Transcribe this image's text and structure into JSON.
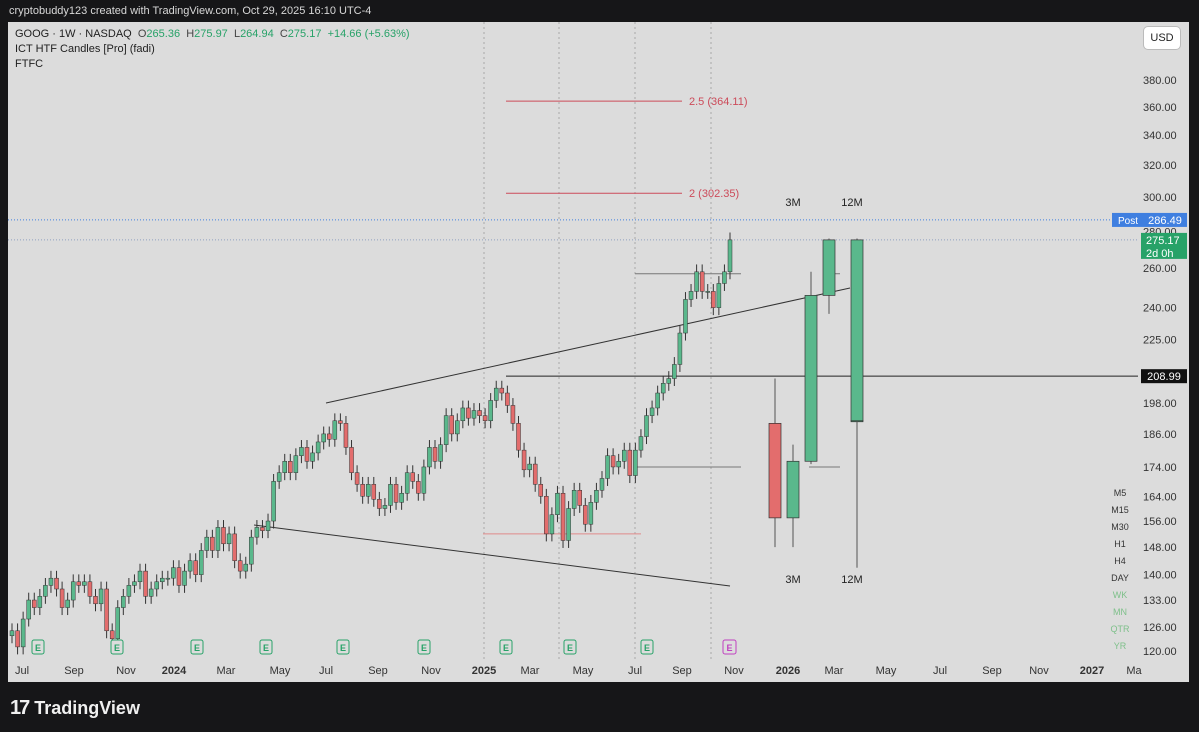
{
  "header": {
    "caption": "cryptobuddy123 created with TradingView.com, Oct 29, 2025 16:10 UTC-4"
  },
  "legend": {
    "symbol": "GOOG · 1W · NASDAQ",
    "o_label": "O",
    "o_value": "265.36",
    "h_label": "H",
    "h_value": "275.97",
    "l_label": "L",
    "l_value": "264.94",
    "c_label": "C",
    "c_value": "275.17",
    "change": "+14.66 (+5.63%)",
    "indicator": "ICT HTF Candles [Pro] (fadi)",
    "indicator2": "FTFC"
  },
  "currency_button": "USD",
  "timeframes": [
    {
      "label": "M5",
      "active": false
    },
    {
      "label": "M15",
      "active": false
    },
    {
      "label": "M30",
      "active": false
    },
    {
      "label": "H1",
      "active": false
    },
    {
      "label": "H4",
      "active": false
    },
    {
      "label": "DAY",
      "active": false
    },
    {
      "label": "WK",
      "active": true
    },
    {
      "label": "MN",
      "active": true
    },
    {
      "label": "QTR",
      "active": true
    },
    {
      "label": "YR",
      "active": true
    }
  ],
  "footer": {
    "brand": "TradingView",
    "logo_mark": "17"
  },
  "colors": {
    "up": "#5ab88c",
    "down": "#e36d6d",
    "level": "#cc4b5a",
    "post": "#3f7fe0",
    "last": "#27a268",
    "background": "#dcdcdc"
  },
  "chart_data": {
    "type": "candlestick",
    "symbol": "GOOG",
    "interval": "1W",
    "exchange": "NASDAQ",
    "y_scale": "log",
    "y_ticks": [
      120,
      126,
      133,
      140,
      148,
      156,
      164,
      174,
      186,
      198,
      225,
      240,
      260,
      280,
      300,
      320,
      340,
      360,
      380
    ],
    "y_tick_labels": [
      "120.00",
      "126.00",
      "133.00",
      "140.00",
      "148.00",
      "156.00",
      "164.00",
      "174.00",
      "186.00",
      "198.00",
      "225.00",
      "240.00",
      "260.00",
      "280.00",
      "300.00",
      "320.00",
      "340.00",
      "360.00",
      "380.00"
    ],
    "x_ticks": [
      {
        "label": "Jul",
        "bold": false
      },
      {
        "label": "Sep",
        "bold": false
      },
      {
        "label": "Nov",
        "bold": false
      },
      {
        "label": "2024",
        "bold": true
      },
      {
        "label": "Mar",
        "bold": false
      },
      {
        "label": "May",
        "bold": false
      },
      {
        "label": "Jul",
        "bold": false
      },
      {
        "label": "Sep",
        "bold": false
      },
      {
        "label": "Nov",
        "bold": false
      },
      {
        "label": "2025",
        "bold": true
      },
      {
        "label": "Mar",
        "bold": false
      },
      {
        "label": "May",
        "bold": false
      },
      {
        "label": "Jul",
        "bold": false
      },
      {
        "label": "Sep",
        "bold": false
      },
      {
        "label": "Nov",
        "bold": false
      },
      {
        "label": "2026",
        "bold": true
      },
      {
        "label": "Mar",
        "bold": false
      },
      {
        "label": "May",
        "bold": false
      },
      {
        "label": "Jul",
        "bold": false
      },
      {
        "label": "Sep",
        "bold": false
      },
      {
        "label": "Nov",
        "bold": false
      },
      {
        "label": "2027",
        "bold": true
      },
      {
        "label": "Ma",
        "bold": false
      }
    ],
    "price_labels": [
      {
        "label": "Post",
        "value": 286.49,
        "text": "286.49",
        "kind": "post"
      },
      {
        "label": "",
        "value": 275.17,
        "text": "275.17",
        "sub": "2d 0h",
        "kind": "last"
      },
      {
        "label": "",
        "value": 208.99,
        "text": "208.99",
        "kind": "level"
      }
    ],
    "fib_levels": [
      {
        "label": "2.5 (364.11)",
        "value": 364.11
      },
      {
        "label": "2 (302.35)",
        "value": 302.35
      }
    ],
    "htf_labels": [
      "3M",
      "12M",
      "3M",
      "12M"
    ],
    "earnings_marker": "E",
    "weekly_closes": [
      125,
      121,
      128,
      133,
      131,
      134,
      137,
      139,
      136,
      131,
      133,
      138,
      137,
      138,
      134,
      132,
      136,
      125,
      123,
      131,
      134,
      137,
      138,
      141,
      134,
      136,
      138,
      139,
      139,
      142,
      137,
      141,
      144,
      140,
      147,
      151,
      147,
      154,
      149,
      152,
      144,
      141,
      143,
      151,
      154,
      153,
      156,
      169,
      172,
      176,
      172,
      178,
      181,
      176,
      179,
      183,
      186,
      184,
      191,
      190,
      181,
      172,
      168,
      164,
      168,
      163,
      160,
      161,
      168,
      162,
      165,
      172,
      169,
      165,
      174,
      181,
      176,
      182,
      193,
      186,
      191,
      196,
      192,
      195,
      193,
      191,
      199,
      204,
      202,
      197,
      190,
      180,
      173,
      175,
      168,
      164,
      152,
      158,
      165,
      150,
      160,
      166,
      161,
      155,
      162,
      166,
      170,
      178,
      174,
      176,
      180,
      171,
      180,
      185,
      193,
      196,
      202,
      206,
      208,
      214,
      228,
      244,
      248,
      258,
      248,
      248,
      240,
      252,
      258,
      275.17
    ],
    "htf_candles": [
      {
        "name": "3M candle 1",
        "open": 190,
        "high": 208,
        "low": 148,
        "close": 157
      },
      {
        "name": "3M candle 2",
        "open": 157,
        "high": 182,
        "low": 148,
        "close": 176
      },
      {
        "name": "3M candle 3",
        "open": 176,
        "high": 258,
        "low": 175,
        "close": 246
      },
      {
        "name": "3M candle 4 (current)",
        "open": 246,
        "high": 275.97,
        "low": 237,
        "close": 275.17
      },
      {
        "name": "12M candle 1",
        "open": 191,
        "high": 208,
        "low": 142,
        "close": 191
      },
      {
        "name": "12M candle 2 (current)",
        "open": 191,
        "high": 275.97,
        "low": 142,
        "close": 275.17
      }
    ]
  }
}
